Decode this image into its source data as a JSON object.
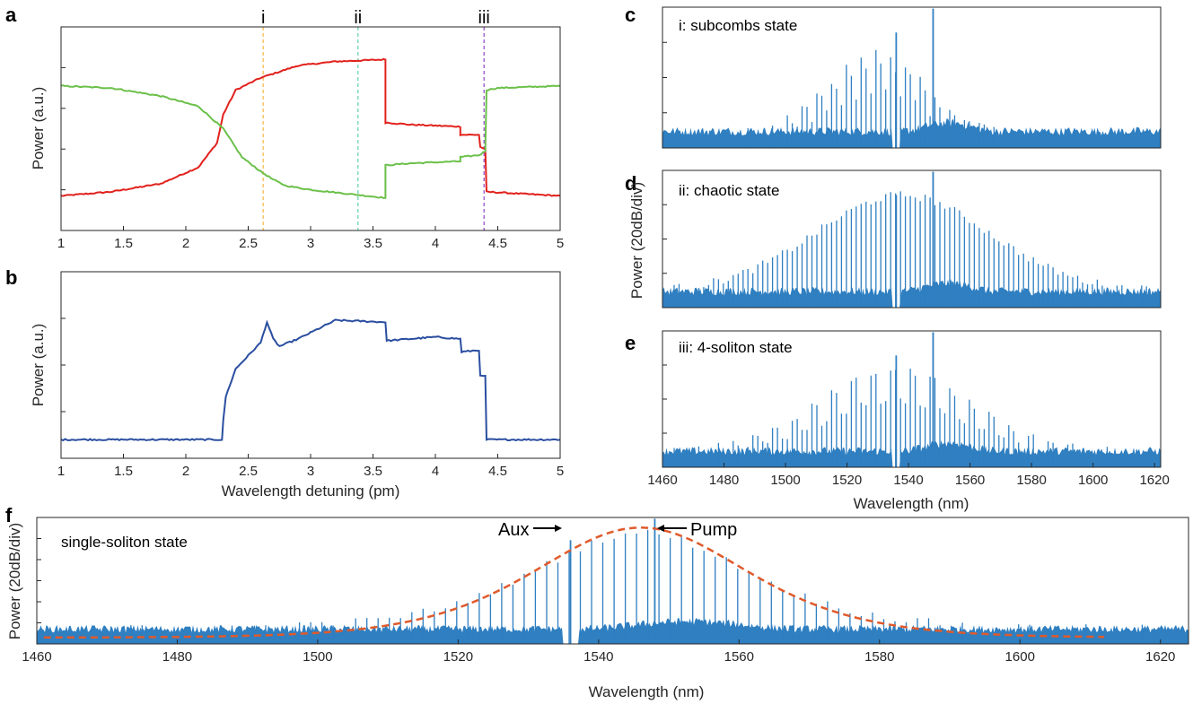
{
  "colors": {
    "red": "#e2211c",
    "green": "#6cc04a",
    "navy": "#2a4ea0",
    "spectrum": "#2f7fc1",
    "envelope": "#e05a2b",
    "marker_i": "#f5b843",
    "marker_ii": "#5fd1a6",
    "marker_iii": "#8e44c6"
  },
  "panels": {
    "a": {
      "letter": "a",
      "ylabel": "Power (a.u.)",
      "markers": [
        "i",
        "ii",
        "iii"
      ]
    },
    "b": {
      "letter": "b",
      "ylabel": "Power (a.u.)",
      "xlabel": "Wavelength detuning (pm)"
    },
    "c": {
      "letter": "c",
      "state": "i: subcombs state"
    },
    "d": {
      "letter": "d",
      "state": "ii: chaotic state",
      "ylabel": "Power (20dB/div)"
    },
    "e": {
      "letter": "e",
      "state": "iii: 4-soliton state",
      "xlabel": "Wavelength (nm)"
    },
    "f": {
      "letter": "f",
      "state": "single-soliton state",
      "ylabel": "Power (20dB/div)",
      "xlabel": "Wavelength (nm)",
      "aux_label": "Aux",
      "pump_label": "Pump"
    }
  },
  "chart_data": [
    {
      "id": "a",
      "type": "line",
      "xlabel": "",
      "ylabel": "Power (a.u.)",
      "xlim": [
        1,
        5
      ],
      "ylim": [
        0,
        1
      ],
      "xticks": [
        "1",
        "1.5",
        "2",
        "2.5",
        "3",
        "3.5",
        "4",
        "4.5",
        "5"
      ],
      "x_values": [
        1,
        1.5,
        2,
        2.5,
        3,
        3.5,
        4,
        4.5,
        5
      ],
      "vlines": [
        {
          "label": "i",
          "x": 2.62,
          "color": "#f5b843"
        },
        {
          "label": "ii",
          "x": 3.38,
          "color": "#5fd1a6"
        },
        {
          "label": "iii",
          "x": 4.39,
          "color": "#8e44c6"
        }
      ],
      "series": [
        {
          "name": "red",
          "color": "#e2211c",
          "points": [
            [
              1,
              0.17
            ],
            [
              1.4,
              0.19
            ],
            [
              1.8,
              0.23
            ],
            [
              2.1,
              0.31
            ],
            [
              2.25,
              0.43
            ],
            [
              2.3,
              0.57
            ],
            [
              2.4,
              0.69
            ],
            [
              2.6,
              0.75
            ],
            [
              2.8,
              0.79
            ],
            [
              2.9,
              0.81
            ],
            [
              3.2,
              0.83
            ],
            [
              3.6,
              0.84
            ],
            [
              3.6,
              0.53
            ],
            [
              3.8,
              0.52
            ],
            [
              4.2,
              0.51
            ],
            [
              4.2,
              0.47
            ],
            [
              4.35,
              0.47
            ],
            [
              4.36,
              0.41
            ],
            [
              4.4,
              0.4
            ],
            [
              4.41,
              0.19
            ],
            [
              4.7,
              0.18
            ],
            [
              5,
              0.17
            ]
          ]
        },
        {
          "name": "green",
          "color": "#6cc04a",
          "points": [
            [
              1,
              0.71
            ],
            [
              1.4,
              0.7
            ],
            [
              1.8,
              0.66
            ],
            [
              2.1,
              0.61
            ],
            [
              2.3,
              0.5
            ],
            [
              2.45,
              0.36
            ],
            [
              2.6,
              0.29
            ],
            [
              2.7,
              0.25
            ],
            [
              2.8,
              0.22
            ],
            [
              3.0,
              0.2
            ],
            [
              3.3,
              0.18
            ],
            [
              3.6,
              0.16
            ],
            [
              3.6,
              0.32
            ],
            [
              3.8,
              0.33
            ],
            [
              4.2,
              0.34
            ],
            [
              4.2,
              0.36
            ],
            [
              4.35,
              0.37
            ],
            [
              4.4,
              0.39
            ],
            [
              4.41,
              0.69
            ],
            [
              4.5,
              0.7
            ],
            [
              5,
              0.71
            ]
          ]
        }
      ]
    },
    {
      "id": "b",
      "type": "line",
      "xlabel": "Wavelength detuning (pm)",
      "ylabel": "Power (a.u.)",
      "xlim": [
        1,
        5
      ],
      "ylim": [
        0,
        1
      ],
      "xticks": [
        "1",
        "1.5",
        "2",
        "2.5",
        "3",
        "3.5",
        "4",
        "4.5",
        "5"
      ],
      "x_values": [
        1,
        1.5,
        2,
        2.5,
        3,
        3.5,
        4,
        4.5,
        5
      ],
      "series": [
        {
          "name": "navy",
          "color": "#2a4ea0",
          "points": [
            [
              1,
              0.1
            ],
            [
              1.5,
              0.1
            ],
            [
              2.0,
              0.1
            ],
            [
              2.29,
              0.1
            ],
            [
              2.3,
              0.2
            ],
            [
              2.32,
              0.33
            ],
            [
              2.4,
              0.48
            ],
            [
              2.5,
              0.55
            ],
            [
              2.6,
              0.62
            ],
            [
              2.65,
              0.73
            ],
            [
              2.7,
              0.64
            ],
            [
              2.75,
              0.6
            ],
            [
              2.9,
              0.64
            ],
            [
              3.2,
              0.74
            ],
            [
              3.6,
              0.73
            ],
            [
              3.61,
              0.63
            ],
            [
              3.8,
              0.64
            ],
            [
              4.0,
              0.65
            ],
            [
              4.2,
              0.64
            ],
            [
              4.21,
              0.57
            ],
            [
              4.35,
              0.58
            ],
            [
              4.36,
              0.44
            ],
            [
              4.4,
              0.44
            ],
            [
              4.41,
              0.1
            ],
            [
              5,
              0.1
            ]
          ]
        }
      ]
    },
    {
      "id": "c",
      "type": "line",
      "title": "i: subcombs state",
      "xlim": [
        1460,
        1622
      ],
      "ylim": [
        0,
        1
      ],
      "comb": {
        "spacing_nm": 1.6,
        "peak_center_nm": 1530,
        "width_nm": 22,
        "peak": 0.72,
        "floor": 0.12,
        "cluster_period_nm": 4.8,
        "pump_nm": 1548,
        "aux_nm": 1536
      }
    },
    {
      "id": "d",
      "type": "line",
      "title": "ii: chaotic state",
      "ylabel": "Power (20dB/div)",
      "xlim": [
        1460,
        1622
      ],
      "ylim": [
        0,
        1
      ],
      "comb": {
        "spacing_nm": 1.6,
        "peak_center_nm": 1538,
        "width_nm": 40,
        "peak": 0.82,
        "floor": 0.12,
        "pump_nm": 1548,
        "aux_nm": 1536
      }
    },
    {
      "id": "e",
      "type": "line",
      "title": "iii: 4-soliton state",
      "xlabel": "Wavelength (nm)",
      "xlim": [
        1460,
        1622
      ],
      "ylim": [
        0,
        1
      ],
      "xticks": [
        "1460",
        "1480",
        "1500",
        "1520",
        "1540",
        "1560",
        "1580",
        "1600",
        "1620"
      ],
      "x_values": [
        1460,
        1480,
        1500,
        1520,
        1540,
        1560,
        1580,
        1600,
        1620
      ],
      "comb": {
        "spacing_nm": 1.6,
        "peak_center_nm": 1535,
        "width_nm": 34,
        "peak": 0.78,
        "floor": 0.12,
        "cluster_period_nm": 6.4,
        "pump_nm": 1548,
        "aux_nm": 1536
      }
    },
    {
      "id": "f",
      "type": "line",
      "title": "single-soliton state",
      "xlabel": "Wavelength (nm)",
      "ylabel": "Power (20dB/div)",
      "xlim": [
        1460,
        1624
      ],
      "ylim": [
        0,
        1
      ],
      "xticks": [
        "1460",
        "1480",
        "1500",
        "1520",
        "1540",
        "1560",
        "1580",
        "1600",
        "1620"
      ],
      "x_values": [
        1460,
        1480,
        1500,
        1520,
        1540,
        1560,
        1580,
        1600,
        1620
      ],
      "annotations": [
        {
          "label": "Aux",
          "x": 1536
        },
        {
          "label": "Pump",
          "x": 1548
        }
      ],
      "envelope": {
        "type": "sech2",
        "center_nm": 1546,
        "width_nm": 36,
        "peak": 0.92,
        "floor": 0.05
      },
      "comb": {
        "spacing_nm": 1.6,
        "peak_center_nm": 1546,
        "width_nm": 36,
        "peak": 0.88,
        "floor": 0.12,
        "pump_nm": 1548,
        "aux_nm": 1536
      }
    }
  ]
}
